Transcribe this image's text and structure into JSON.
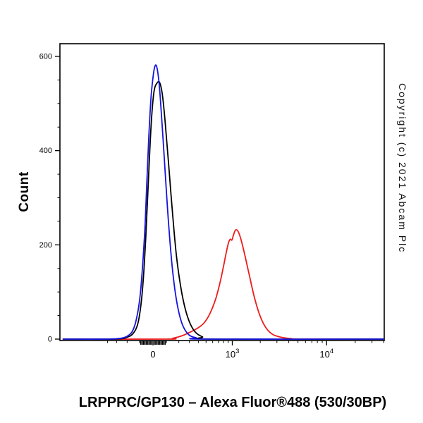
{
  "title": "LRPPRC/GP130 – Alexa Fluor®488 (530/30BP)",
  "copyright": "Copyright (c) 2021 Abcam Plc",
  "chart_data": {
    "type": "line",
    "subtype": "flow-cytometry-histogram",
    "title": "LRPPRC/GP130 – Alexa Fluor®488 (530/30BP)",
    "xlabel": "",
    "ylabel": "Count",
    "x_scale": "biexponential-asinh",
    "x_range": [
      -1400,
      40000
    ],
    "ylim": [
      0,
      627
    ],
    "grid": false,
    "legend": "none",
    "y_ticks": [
      0,
      200,
      400,
      600
    ],
    "y_minor_ticks": [
      50,
      100,
      150,
      250,
      300,
      350,
      450,
      500,
      550
    ],
    "x_ticks": [
      {
        "value": 0,
        "base": "0",
        "exp": ""
      },
      {
        "value": 1000,
        "base": "10",
        "exp": "3"
      },
      {
        "value": 10000,
        "base": "10",
        "exp": "4"
      }
    ],
    "x_minor_ticks": [
      -400,
      -300,
      -200,
      -100,
      -90,
      -80,
      -70,
      -60,
      -50,
      -40,
      -30,
      -20,
      -10,
      10,
      20,
      30,
      40,
      50,
      60,
      70,
      80,
      90,
      100,
      200,
      300,
      400,
      500,
      600,
      700,
      800,
      900,
      2000,
      3000,
      4000,
      5000,
      6000,
      7000,
      8000,
      9000,
      20000,
      30000,
      40000
    ],
    "series": [
      {
        "name": "red-curve",
        "color": "#ee1c1c",
        "peak_x": 1100,
        "peak_count": 232,
        "points": [
          [
            -1300,
            0
          ],
          [
            100,
            0
          ],
          [
            150,
            2
          ],
          [
            200,
            5
          ],
          [
            250,
            9
          ],
          [
            300,
            14
          ],
          [
            380,
            22
          ],
          [
            470,
            34
          ],
          [
            560,
            55
          ],
          [
            650,
            85
          ],
          [
            730,
            120
          ],
          [
            800,
            155
          ],
          [
            860,
            185
          ],
          [
            910,
            205
          ],
          [
            950,
            212
          ],
          [
            990,
            210
          ],
          [
            1020,
            218
          ],
          [
            1060,
            228
          ],
          [
            1100,
            232
          ],
          [
            1160,
            228
          ],
          [
            1250,
            210
          ],
          [
            1380,
            175
          ],
          [
            1550,
            130
          ],
          [
            1750,
            85
          ],
          [
            2000,
            48
          ],
          [
            2300,
            24
          ],
          [
            2700,
            10
          ],
          [
            3300,
            4
          ],
          [
            4200,
            1
          ],
          [
            5500,
            0
          ],
          [
            40000,
            0
          ]
        ]
      },
      {
        "name": "black-curve",
        "color": "#000000",
        "peak_x": 48,
        "peak_count": 545,
        "points": [
          [
            -1300,
            0
          ],
          [
            -320,
            0
          ],
          [
            -200,
            4
          ],
          [
            -150,
            12
          ],
          [
            -115,
            30
          ],
          [
            -90,
            70
          ],
          [
            -70,
            130
          ],
          [
            -52,
            220
          ],
          [
            -36,
            320
          ],
          [
            -20,
            420
          ],
          [
            -5,
            490
          ],
          [
            10,
            530
          ],
          [
            28,
            543
          ],
          [
            48,
            545
          ],
          [
            68,
            520
          ],
          [
            90,
            460
          ],
          [
            115,
            375
          ],
          [
            145,
            275
          ],
          [
            180,
            175
          ],
          [
            225,
            100
          ],
          [
            280,
            48
          ],
          [
            350,
            18
          ],
          [
            450,
            5
          ],
          [
            600,
            0
          ],
          [
            40000,
            0
          ]
        ]
      },
      {
        "name": "blue-curve",
        "color": "#1414e0",
        "peak_x": 25,
        "peak_count": 580,
        "points": [
          [
            -1300,
            0
          ],
          [
            -400,
            0
          ],
          [
            -250,
            2
          ],
          [
            -200,
            6
          ],
          [
            -160,
            15
          ],
          [
            -130,
            35
          ],
          [
            -100,
            80
          ],
          [
            -80,
            140
          ],
          [
            -60,
            230
          ],
          [
            -45,
            330
          ],
          [
            -30,
            430
          ],
          [
            -15,
            510
          ],
          [
            0,
            555
          ],
          [
            12,
            577
          ],
          [
            25,
            580
          ],
          [
            40,
            555
          ],
          [
            55,
            505
          ],
          [
            75,
            420
          ],
          [
            95,
            330
          ],
          [
            120,
            230
          ],
          [
            150,
            140
          ],
          [
            185,
            75
          ],
          [
            230,
            32
          ],
          [
            290,
            10
          ],
          [
            370,
            3
          ],
          [
            500,
            0
          ],
          [
            40000,
            0
          ]
        ]
      }
    ]
  }
}
